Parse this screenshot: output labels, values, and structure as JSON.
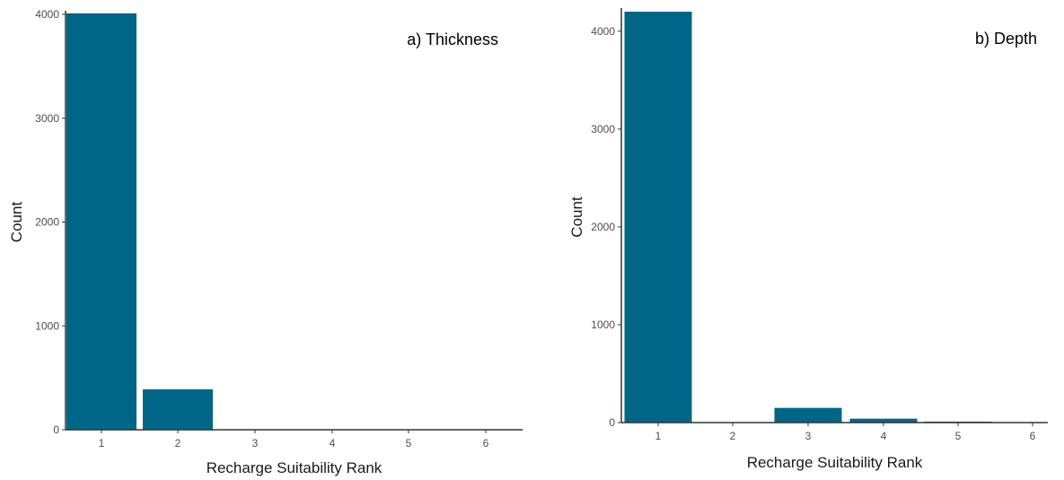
{
  "chart_data": [
    {
      "type": "bar",
      "title": "a) Thickness",
      "xlabel": "Recharge Suitability Rank",
      "ylabel": "Count",
      "categories": [
        "1",
        "2",
        "3",
        "4",
        "5",
        "6"
      ],
      "values": [
        4010,
        390,
        0,
        0,
        0,
        0
      ],
      "ylim": [
        0,
        4000
      ],
      "yticks": [
        "0",
        "1000",
        "2000",
        "3000",
        "4000"
      ],
      "bar_color": "#006688",
      "grid": false,
      "legend": "none"
    },
    {
      "type": "bar",
      "title": "b) Depth",
      "xlabel": "Recharge Suitability Rank",
      "ylabel": "Count",
      "categories": [
        "1",
        "2",
        "3",
        "4",
        "5",
        "6"
      ],
      "values": [
        4200,
        0,
        150,
        40,
        10,
        0
      ],
      "ylim": [
        0,
        4200
      ],
      "yticks": [
        "0",
        "1000",
        "2000",
        "3000",
        "4000"
      ],
      "bar_color": "#006688",
      "grid": false,
      "legend": "none"
    }
  ]
}
